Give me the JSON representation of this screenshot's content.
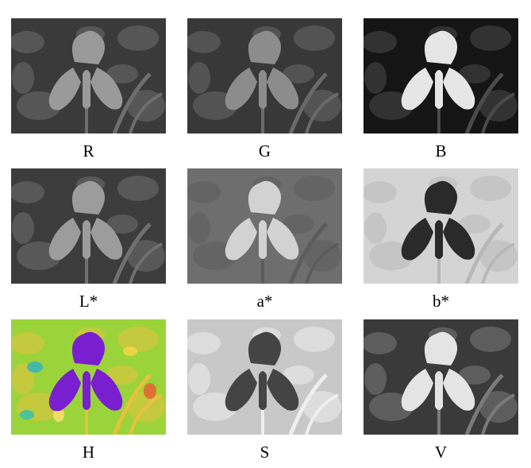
{
  "panels": [
    {
      "label": "R",
      "kind": "gray",
      "bg": "#3a3a3a",
      "flower": "#9a9a9a",
      "leaf": "#6e6e6e"
    },
    {
      "label": "G",
      "kind": "gray",
      "bg": "#383838",
      "flower": "#8c8c8c",
      "leaf": "#6a6a6a"
    },
    {
      "label": "B",
      "kind": "gray",
      "bg": "#151515",
      "flower": "#e6e6e6",
      "leaf": "#4a4a4a"
    },
    {
      "label": "L*",
      "kind": "gray",
      "bg": "#3c3c3c",
      "flower": "#9c9c9c",
      "leaf": "#707070"
    },
    {
      "label": "a*",
      "kind": "gray",
      "bg": "#6e6e6e",
      "flower": "#d2d2d2",
      "leaf": "#5c5c5c"
    },
    {
      "label": "b*",
      "kind": "gray",
      "bg": "#d4d4d4",
      "flower": "#2a2a2a",
      "leaf": "#b8b8b8"
    },
    {
      "label": "H",
      "kind": "hue",
      "bg": "#9ad43a",
      "flower": "#7a1fd0",
      "leaf": "#e8c040"
    },
    {
      "label": "S",
      "kind": "gray",
      "bg": "#c8c8c8",
      "flower": "#444444",
      "leaf": "#efefef"
    },
    {
      "label": "V",
      "kind": "gray",
      "bg": "#3a3a3a",
      "flower": "#e4e4e4",
      "leaf": "#7a7a7a"
    }
  ]
}
